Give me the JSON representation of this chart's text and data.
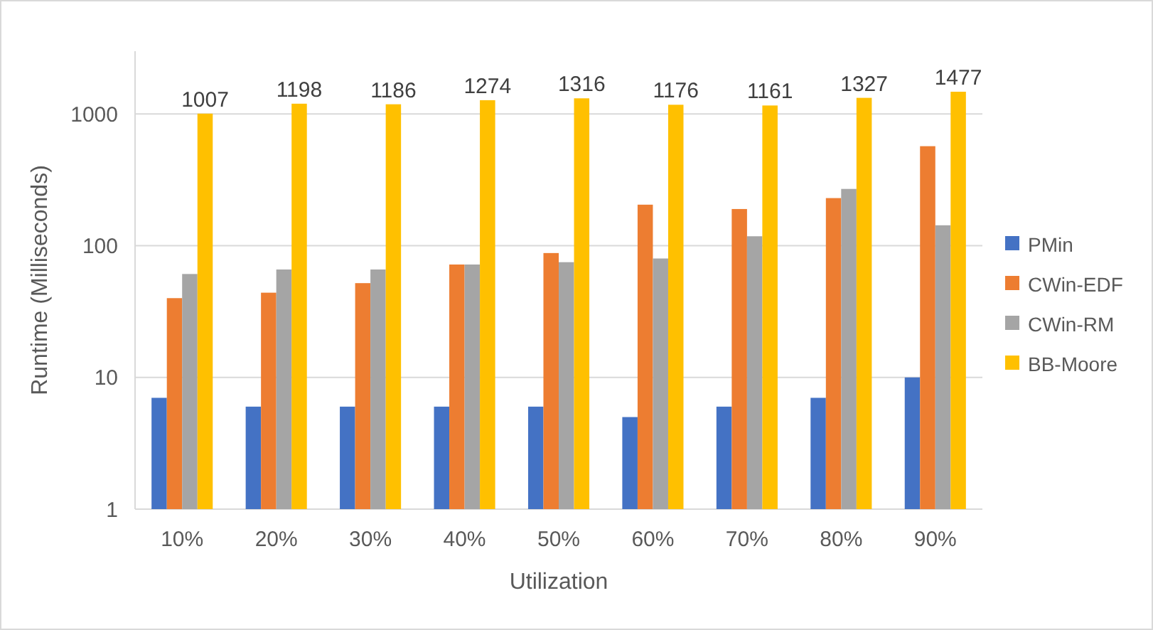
{
  "chart_data": {
    "type": "bar",
    "xlabel": "Utilization",
    "ylabel": "Runtime (Milliseconds)",
    "categories": [
      "10%",
      "20%",
      "30%",
      "40%",
      "50%",
      "60%",
      "70%",
      "80%",
      "90%"
    ],
    "series": [
      {
        "name": "PMin",
        "color": "#4472c4",
        "values": [
          7,
          6,
          6,
          6,
          6,
          5,
          6,
          7,
          10
        ]
      },
      {
        "name": "CWin-EDF",
        "color": "#ed7d31",
        "values": [
          40,
          44,
          52,
          72,
          88,
          205,
          190,
          230,
          570
        ]
      },
      {
        "name": "CWin-RM",
        "color": "#a5a5a5",
        "values": [
          61,
          66,
          66,
          72,
          75,
          80,
          118,
          270,
          143
        ]
      },
      {
        "name": "BB-Moore",
        "color": "#ffc000",
        "values": [
          1007,
          1198,
          1186,
          1274,
          1316,
          1176,
          1161,
          1327,
          1477
        ],
        "value_labels": [
          "1007",
          "1198",
          "1186",
          "1274",
          "1316",
          "1176",
          "1161",
          "1327",
          "1477"
        ]
      }
    ],
    "log": true,
    "ylim": [
      1,
      3000
    ],
    "yticks": [
      1,
      10,
      100,
      1000
    ],
    "grid": "y",
    "legend": "right"
  }
}
